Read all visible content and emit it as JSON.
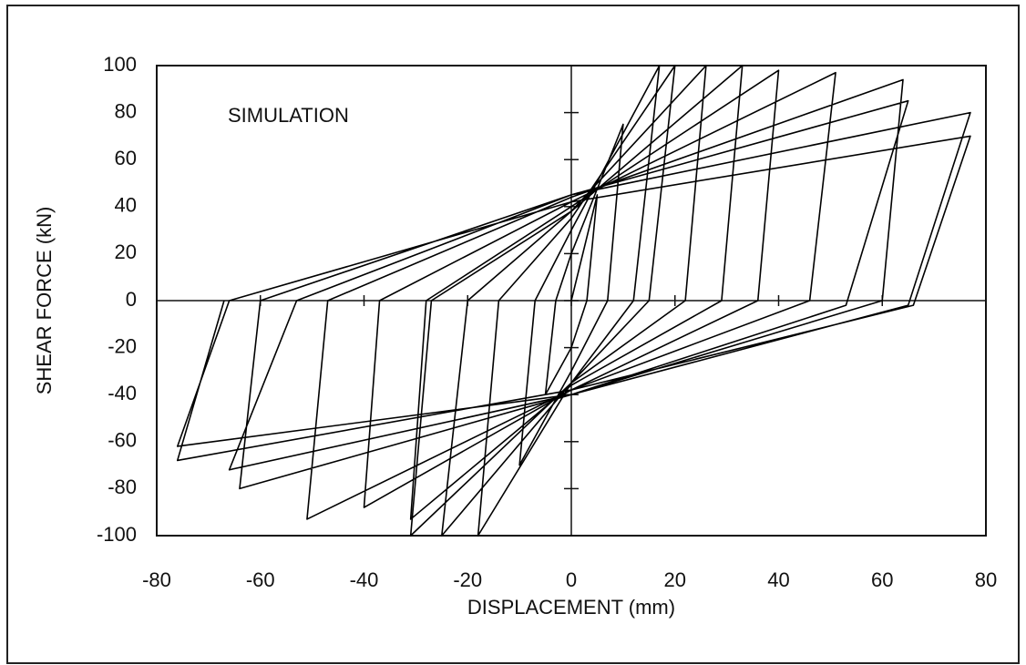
{
  "chart_data": {
    "type": "line",
    "annotation": "SIMULATION",
    "x_label": "DISPLACEMENT (mm)",
    "y_label": "SHEAR FORCE (kN)",
    "xlim": [
      -80,
      80
    ],
    "xticks": [
      -80,
      -60,
      -40,
      -20,
      0,
      20,
      40,
      60,
      80
    ],
    "ylim": [
      -100,
      100
    ],
    "yticks": [
      -100,
      -80,
      -60,
      -40,
      -20,
      0,
      20,
      40,
      60,
      80,
      100
    ],
    "series": [
      {
        "color": "#000000",
        "x": [
          0,
          5,
          3,
          0,
          -5,
          -3,
          0,
          10,
          7,
          0,
          -10,
          -7,
          0,
          17,
          12,
          0,
          -18,
          -14,
          0,
          20,
          15,
          0,
          -25,
          -20,
          0,
          26,
          22,
          0,
          -31,
          -27,
          0,
          33,
          29,
          0,
          -31,
          -28,
          0,
          40,
          36,
          0,
          -40,
          -37,
          0,
          51,
          46,
          0,
          -51,
          -47,
          0,
          64,
          60,
          0,
          -64,
          -60,
          0,
          65,
          53,
          0,
          -66,
          -53,
          0,
          77,
          65,
          0,
          -76,
          -66,
          0,
          77,
          66,
          0,
          -76,
          -67
        ],
        "values": [
          0,
          45,
          0,
          -20,
          -40,
          0,
          20,
          75,
          0,
          -30,
          -70,
          0,
          30,
          100,
          0,
          -35,
          -100,
          0,
          35,
          100,
          0,
          -35,
          -100,
          0,
          38,
          100,
          0,
          -35,
          -100,
          0,
          38,
          100,
          0,
          -36,
          -93,
          0,
          40,
          98,
          0,
          -38,
          -88,
          0,
          42,
          97,
          0,
          -38,
          -93,
          0,
          44,
          94,
          0,
          -40,
          -80,
          0,
          45,
          85,
          -2,
          -40,
          -72,
          0,
          45,
          80,
          -2,
          -40,
          -62,
          0,
          42,
          70,
          -2,
          -38,
          -68,
          0
        ]
      }
    ]
  }
}
